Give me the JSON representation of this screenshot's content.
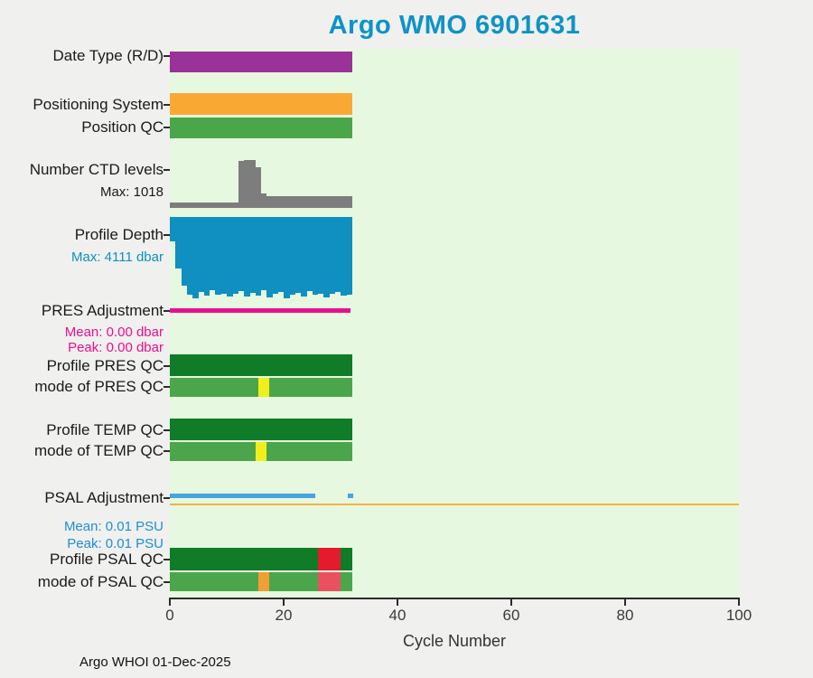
{
  "title": "Argo WMO 6901631",
  "footer": "Argo WHOI 01-Dec-2025",
  "colors": {
    "title": "#0d93c6",
    "plot_background": "#e6f8e0",
    "figure_background": "#f0f0ee",
    "purple": "#993299",
    "orange": "#f9a933",
    "green": "#4ba64b",
    "dark_green": "#107c28",
    "gray": "#7d7d7d",
    "depth_blue": "#0f90c0",
    "magenta": "#e8108e",
    "yellow": "#f2ee1d",
    "light_blue": "#4aa3dc",
    "red": "#e31b2d",
    "crimson": "#ea5160"
  },
  "chart_data": {
    "type": "multi-row Argo float status timeline (bands, bar, line subplots sharing one x axis)",
    "x_axis": {
      "label": "Cycle Number",
      "min": 0,
      "max": 100,
      "ticks": [
        0,
        20,
        40,
        60,
        80,
        100
      ]
    },
    "cycles_shown": 32,
    "rows": [
      {
        "id": "date_type",
        "label": "Date Type (R/D)",
        "kind": "band",
        "sublabels": [],
        "segments": [
          {
            "from": 0,
            "to": 32,
            "color": "#993299"
          }
        ]
      },
      {
        "id": "positioning_system",
        "label": "Positioning System",
        "kind": "band",
        "sublabels": [],
        "segments": [
          {
            "from": 0,
            "to": 32,
            "color": "#f9a933"
          }
        ]
      },
      {
        "id": "position_qc",
        "label": "Position QC",
        "kind": "band",
        "sublabels": [],
        "segments": [
          {
            "from": 0,
            "to": 32,
            "color": "#4ba64b"
          }
        ]
      },
      {
        "id": "number_ctd_levels",
        "label": "Number CTD levels",
        "kind": "bars_up",
        "color": "#7d7d7d",
        "max": 1018,
        "sublabels": [
          {
            "text": "Max: 1018",
            "color": "#1a1a1a"
          }
        ],
        "values": [
          118,
          122,
          119,
          124,
          120,
          123,
          118,
          121,
          120,
          124,
          119,
          122,
          995,
          1018,
          1010,
          870,
          305,
          258,
          252,
          249,
          254,
          250,
          247,
          251,
          248,
          253,
          249,
          251,
          247,
          252,
          250,
          249
        ]
      },
      {
        "id": "profile_depth",
        "label": "Profile Depth",
        "kind": "bars_down",
        "color": "#0f90c0",
        "max": 4111,
        "sublabels": [
          {
            "text": "Max: 4111 dbar",
            "color": "#0f90c0"
          }
        ],
        "values": [
          1250,
          2600,
          3480,
          3920,
          4111,
          3810,
          3990,
          3720,
          3940,
          3860,
          4040,
          3900,
          3760,
          4010,
          3840,
          3960,
          3710,
          4050,
          3890,
          3800,
          4090,
          3950,
          3840,
          4000,
          3760,
          3940,
          3860,
          4060,
          3900,
          3810,
          3990,
          3920
        ]
      },
      {
        "id": "pres_adjustment",
        "label": "PRES Adjustment",
        "kind": "line",
        "color": "#e8108e",
        "sublabels": [
          {
            "text": "Mean: 0.00 dbar",
            "color": "#e8108e"
          },
          {
            "text": "Peak: 0.00 dbar",
            "color": "#e8108e"
          }
        ],
        "segments": [
          {
            "from": 0,
            "to": 31.7
          }
        ]
      },
      {
        "id": "profile_pres_qc",
        "label": "Profile PRES QC",
        "kind": "band",
        "sublabels": [],
        "segments": [
          {
            "from": 0,
            "to": 32,
            "color": "#107c28"
          }
        ]
      },
      {
        "id": "mode_pres_qc",
        "label": "mode of PRES QC",
        "kind": "band",
        "sublabels": [],
        "segments": [
          {
            "from": 0,
            "to": 15.5,
            "color": "#4ba64b"
          },
          {
            "from": 15.5,
            "to": 17.5,
            "color": "#f2ee1d"
          },
          {
            "from": 17.5,
            "to": 32,
            "color": "#4ba64b"
          }
        ]
      },
      {
        "id": "profile_temp_qc",
        "label": "Profile TEMP QC",
        "kind": "band",
        "sublabels": [],
        "segments": [
          {
            "from": 0,
            "to": 32,
            "color": "#107c28"
          }
        ]
      },
      {
        "id": "mode_temp_qc",
        "label": "mode of TEMP QC",
        "kind": "band",
        "sublabels": [],
        "segments": [
          {
            "from": 0,
            "to": 15,
            "color": "#4ba64b"
          },
          {
            "from": 15,
            "to": 17,
            "color": "#f2ee1d"
          },
          {
            "from": 17,
            "to": 32,
            "color": "#4ba64b"
          }
        ]
      },
      {
        "id": "psal_adjustment",
        "label": "PSAL Adjustment",
        "kind": "line",
        "color": "#4aa3dc",
        "sublabels": [
          {
            "text": "Mean: 0.01 PSU",
            "color": "#1e8fd5"
          },
          {
            "text": "Peak: 0.01 PSU",
            "color": "#1e8fd5"
          }
        ],
        "segments": [
          {
            "from": 0,
            "to": 25.6
          },
          {
            "from": 31.3,
            "to": 32.2
          }
        ],
        "reference_line": {
          "color": "#fbb03c",
          "from": 0,
          "to": 100
        }
      },
      {
        "id": "profile_psal_qc",
        "label": "Profile PSAL QC",
        "kind": "band",
        "sublabels": [],
        "segments": [
          {
            "from": 0,
            "to": 26,
            "color": "#107c28"
          },
          {
            "from": 26,
            "to": 30,
            "color": "#e31b2d"
          },
          {
            "from": 30,
            "to": 32,
            "color": "#107c28"
          }
        ]
      },
      {
        "id": "mode_psal_qc",
        "label": "mode of PSAL QC",
        "kind": "band",
        "sublabels": [],
        "segments": [
          {
            "from": 0,
            "to": 15.5,
            "color": "#4ba64b"
          },
          {
            "from": 15.5,
            "to": 17.5,
            "color": "#f0a030"
          },
          {
            "from": 17.5,
            "to": 26,
            "color": "#4ba64b"
          },
          {
            "from": 26,
            "to": 30,
            "color": "#ea5160"
          },
          {
            "from": 30,
            "to": 32,
            "color": "#4ba64b"
          }
        ]
      }
    ]
  }
}
